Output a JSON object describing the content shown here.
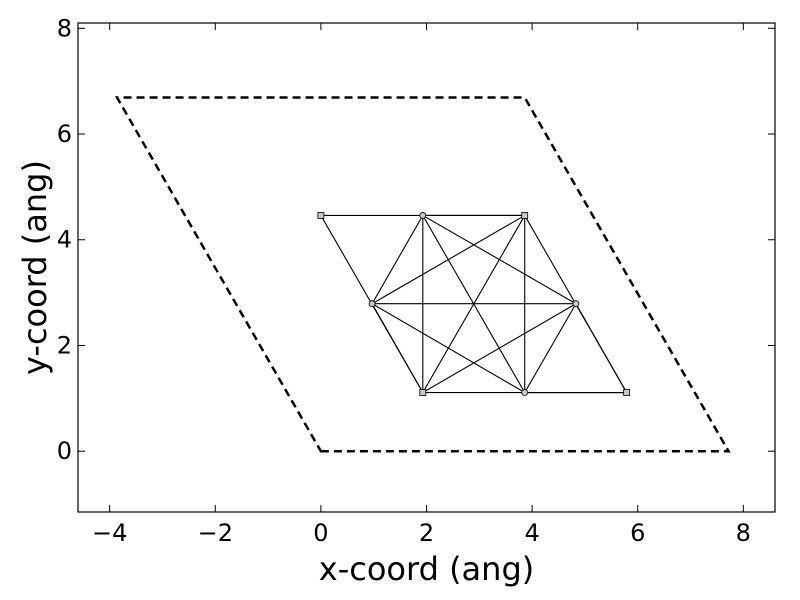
{
  "chart_data": {
    "type": "scatter",
    "title": "",
    "xlabel": "x-coord (ang)",
    "ylabel": "y-coord (ang)",
    "xlim": [
      -4.6,
      8.6
    ],
    "ylim": [
      -1.15,
      8.1
    ],
    "grid": false,
    "legend": "none",
    "x_ticks": [
      -4,
      -2,
      0,
      2,
      4,
      6,
      8
    ],
    "x_tick_labels": [
      "−4",
      "−2",
      "0",
      "2",
      "4",
      "6",
      "8"
    ],
    "y_ticks": [
      0,
      2,
      4,
      6,
      8
    ],
    "y_tick_labels": [
      "0",
      "2",
      "4",
      "6",
      "8"
    ],
    "unit_cell": {
      "style": "dashed",
      "color": "#000000",
      "vertices": [
        [
          0,
          0
        ],
        [
          7.72,
          0
        ],
        [
          3.86,
          6.69
        ],
        [
          -3.86,
          6.69
        ]
      ]
    },
    "atoms": {
      "color": "#c8c8c8",
      "points": [
        {
          "x": 0.0,
          "y": 4.46,
          "marker": "square"
        },
        {
          "x": 1.93,
          "y": 4.46,
          "marker": "circle"
        },
        {
          "x": 3.86,
          "y": 4.46,
          "marker": "square"
        },
        {
          "x": 0.97,
          "y": 2.79,
          "marker": "circle"
        },
        {
          "x": 4.83,
          "y": 2.79,
          "marker": "circle"
        },
        {
          "x": 1.93,
          "y": 1.11,
          "marker": "square"
        },
        {
          "x": 3.86,
          "y": 1.11,
          "marker": "circle"
        },
        {
          "x": 5.79,
          "y": 1.11,
          "marker": "square"
        }
      ]
    },
    "bonds": [
      [
        0,
        2
      ],
      [
        0,
        5
      ],
      [
        2,
        7
      ],
      [
        5,
        7
      ],
      [
        3,
        4
      ],
      [
        1,
        6
      ],
      [
        1,
        3
      ],
      [
        1,
        4
      ],
      [
        1,
        5
      ],
      [
        1,
        2
      ],
      [
        2,
        6
      ],
      [
        2,
        3
      ],
      [
        2,
        5
      ],
      [
        3,
        6
      ],
      [
        4,
        6
      ],
      [
        4,
        5
      ],
      [
        6,
        7
      ],
      [
        4,
        7
      ],
      [
        3,
        5
      ]
    ],
    "bond_color": "#000000"
  }
}
